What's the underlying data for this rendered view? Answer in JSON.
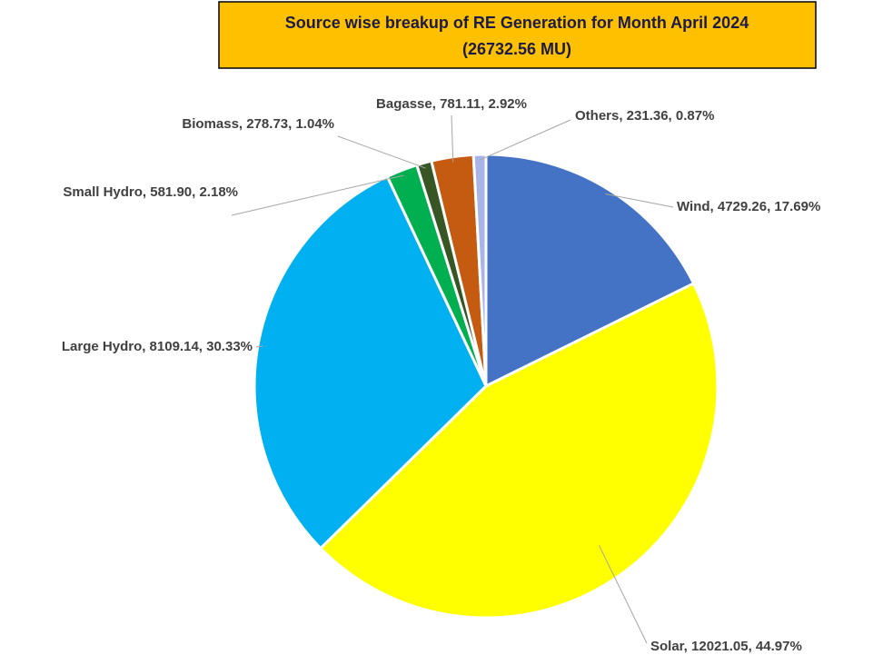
{
  "chart_data": {
    "type": "pie",
    "title": "Source wise breakup of RE Generation for Month April 2024",
    "subtitle": "(26732.56 MU)",
    "values": [
      4729.26,
      12021.05,
      8109.14,
      581.9,
      278.73,
      781.11,
      231.36
    ],
    "value_labels": [
      "Wind, 4729.26, 17.69%",
      "Solar, 12021.05, 44.97%",
      "Large Hydro, 8109.14, 30.33%",
      "Small Hydro, 581.90, 2.18%",
      "Biomass, 278.73, 1.04%",
      "Bagasse, 781.11, 2.92%",
      "Others, 231.36, 0.87%"
    ],
    "colors": [
      "#4472c4",
      "#ffff00",
      "#00b0f0",
      "#00b050",
      "#375623",
      "#c55a11",
      "#a9b4e8"
    ]
  }
}
